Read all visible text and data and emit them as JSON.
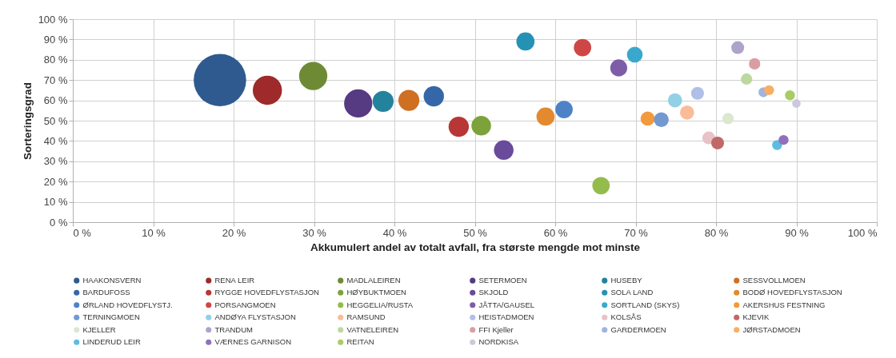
{
  "chart_data": {
    "type": "bubble",
    "xlabel": "Akkumulert andel av totalt avfall, fra største mengde mot minste",
    "ylabel": "Sorteringsgrad",
    "xlim": [
      0,
      100
    ],
    "ylim": [
      0,
      100
    ],
    "xticks": [
      {
        "value": 0,
        "label": "0 %"
      },
      {
        "value": 10,
        "label": "10 %"
      },
      {
        "value": 20,
        "label": "20 %"
      },
      {
        "value": 30,
        "label": "30 %"
      },
      {
        "value": 40,
        "label": "40 %"
      },
      {
        "value": 50,
        "label": "50 %"
      },
      {
        "value": 60,
        "label": "60 %"
      },
      {
        "value": 70,
        "label": "70 %"
      },
      {
        "value": 80,
        "label": "80 %"
      },
      {
        "value": 90,
        "label": "90 %"
      },
      {
        "value": 100,
        "label": "100 %"
      }
    ],
    "yticks": [
      {
        "value": 0,
        "label": "0 %"
      },
      {
        "value": 10,
        "label": "10 %"
      },
      {
        "value": 20,
        "label": "20 %"
      },
      {
        "value": 30,
        "label": "30 %"
      },
      {
        "value": 40,
        "label": "40 %"
      },
      {
        "value": 50,
        "label": "50 %"
      },
      {
        "value": 60,
        "label": "60 %"
      },
      {
        "value": 70,
        "label": "70 %"
      },
      {
        "value": 80,
        "label": "80 %"
      },
      {
        "value": 90,
        "label": "90 %"
      },
      {
        "value": 100,
        "label": "100 %"
      }
    ],
    "grid": true,
    "legend": "bottom",
    "marker": "circle",
    "series": [
      {
        "name": "HAAKONSVERN",
        "color": "#2f5a8f",
        "x": [
          18.3
        ],
        "values": [
          70
        ],
        "sizes": [
          1
        ]
      },
      {
        "name": "RENA LEIR",
        "color": "#9e2a2a",
        "x": [
          24.2
        ],
        "values": [
          65
        ],
        "sizes": [
          0.31
        ]
      },
      {
        "name": "MADLALEIREN",
        "color": "#6f8a35",
        "x": [
          29.9
        ],
        "values": [
          72
        ],
        "sizes": [
          0.29
        ]
      },
      {
        "name": "SETERMOEN",
        "color": "#563a82",
        "x": [
          35.5
        ],
        "values": [
          58.5
        ],
        "sizes": [
          0.29
        ]
      },
      {
        "name": "HUSEBY",
        "color": "#24839c",
        "x": [
          38.6
        ],
        "values": [
          59.5
        ],
        "sizes": [
          0.16
        ]
      },
      {
        "name": "SESSVOLLMOEN",
        "color": "#cf6f22",
        "x": [
          41.8
        ],
        "values": [
          60
        ],
        "sizes": [
          0.16
        ]
      },
      {
        "name": "BARDUFOSS",
        "color": "#3566a8",
        "x": [
          44.9
        ],
        "values": [
          62
        ],
        "sizes": [
          0.15
        ]
      },
      {
        "name": "RYGGE HOVEDFLYSTASJON",
        "color": "#b83636",
        "x": [
          48.0
        ],
        "values": [
          47
        ],
        "sizes": [
          0.15
        ]
      },
      {
        "name": "HØYBUKTMOEN",
        "color": "#7da23c",
        "x": [
          50.8
        ],
        "values": [
          47.5
        ],
        "sizes": [
          0.14
        ]
      },
      {
        "name": "SKJOLD",
        "color": "#6a4a9a",
        "x": [
          53.6
        ],
        "values": [
          35.5
        ],
        "sizes": [
          0.14
        ]
      },
      {
        "name": "SOLA LAND",
        "color": "#2592b5",
        "x": [
          56.3
        ],
        "values": [
          89
        ],
        "sizes": [
          0.12
        ]
      },
      {
        "name": "BODØ HOVEDFLYSTASJON",
        "color": "#e3892e",
        "x": [
          58.8
        ],
        "values": [
          52
        ],
        "sizes": [
          0.12
        ]
      },
      {
        "name": "ØRLAND HOVEDFLYSTJ.",
        "color": "#4e82c6",
        "x": [
          61.1
        ],
        "values": [
          55.5
        ],
        "sizes": [
          0.11
        ]
      },
      {
        "name": "PORSANGMOEN",
        "color": "#cf4646",
        "x": [
          63.4
        ],
        "values": [
          86
        ],
        "sizes": [
          0.11
        ]
      },
      {
        "name": "HEGGELIA/RUSTA",
        "color": "#94bc4c",
        "x": [
          65.7
        ],
        "values": [
          18
        ],
        "sizes": [
          0.11
        ]
      },
      {
        "name": "JÅTTA/GAUSEL",
        "color": "#7d5da8",
        "x": [
          67.9
        ],
        "values": [
          76
        ],
        "sizes": [
          0.105
        ]
      },
      {
        "name": "SORTLAND (SKYS)",
        "color": "#3aa8cc",
        "x": [
          69.9
        ],
        "values": [
          82.5
        ],
        "sizes": [
          0.09
        ]
      },
      {
        "name": "AKERSHUS FESTNING",
        "color": "#f29a3c",
        "x": [
          71.5
        ],
        "values": [
          51
        ],
        "sizes": [
          0.073
        ]
      },
      {
        "name": "TERNINGMOEN",
        "color": "#7399d0",
        "x": [
          73.2
        ],
        "values": [
          50.5
        ],
        "sizes": [
          0.08
        ]
      },
      {
        "name": "ANDØYA FLYSTASJON",
        "color": "#92d0e6",
        "x": [
          74.9
        ],
        "values": [
          60
        ],
        "sizes": [
          0.073
        ]
      },
      {
        "name": "RAMSUND",
        "color": "#f8bd98",
        "x": [
          76.4
        ],
        "values": [
          54
        ],
        "sizes": [
          0.073
        ]
      },
      {
        "name": "HEISTADMOEN",
        "color": "#b0bfe8",
        "x": [
          77.7
        ],
        "values": [
          63.5
        ],
        "sizes": [
          0.06
        ]
      },
      {
        "name": "KOLSÅS",
        "color": "#e8c2c8",
        "x": [
          79.1
        ],
        "values": [
          41.5
        ],
        "sizes": [
          0.06
        ]
      },
      {
        "name": "KJEVIK",
        "color": "#c06868",
        "x": [
          80.2
        ],
        "values": [
          39
        ],
        "sizes": [
          0.06
        ]
      },
      {
        "name": "KJELLER",
        "color": "#dbe8cf",
        "x": [
          81.5
        ],
        "values": [
          51
        ],
        "sizes": [
          0.047
        ]
      },
      {
        "name": "TRANDUM",
        "color": "#ada3cb",
        "x": [
          82.7
        ],
        "values": [
          86
        ],
        "sizes": [
          0.06
        ]
      },
      {
        "name": "VATNELEIREN",
        "color": "#bcd8a0",
        "x": [
          83.8
        ],
        "values": [
          70.5
        ],
        "sizes": [
          0.047
        ]
      },
      {
        "name": "FFI Kjeller",
        "color": "#d99ea3",
        "x": [
          84.8
        ],
        "values": [
          78
        ],
        "sizes": [
          0.047
        ]
      },
      {
        "name": "GARDERMOEN",
        "color": "#9fb4e0",
        "x": [
          85.9
        ],
        "values": [
          64
        ],
        "sizes": [
          0.036
        ]
      },
      {
        "name": "JØRSTADMOEN",
        "color": "#f8ae64",
        "x": [
          86.6
        ],
        "values": [
          65
        ],
        "sizes": [
          0.036
        ]
      },
      {
        "name": "LINDERUD LEIR",
        "color": "#5cbde0",
        "x": [
          87.6
        ],
        "values": [
          38
        ],
        "sizes": [
          0.036
        ]
      },
      {
        "name": "VÆRNES GARNISON",
        "color": "#9170bb",
        "x": [
          88.4
        ],
        "values": [
          40.5
        ],
        "sizes": [
          0.036
        ]
      },
      {
        "name": "REITAN",
        "color": "#a8cc66",
        "x": [
          89.2
        ],
        "values": [
          62.5
        ],
        "sizes": [
          0.036
        ]
      },
      {
        "name": "NORDKISA",
        "color": "#cdc8dc",
        "x": [
          90.0
        ],
        "values": [
          58.5
        ],
        "sizes": [
          0.026
        ]
      }
    ]
  }
}
